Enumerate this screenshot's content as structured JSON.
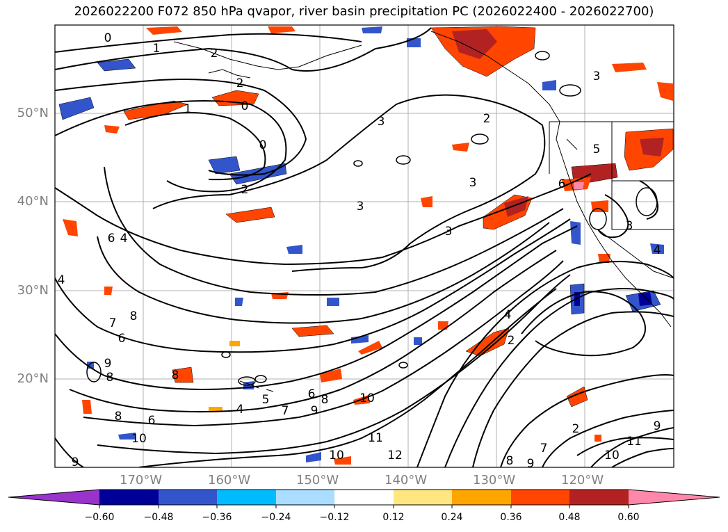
{
  "title": "2026022200 F072 850 hPa qvapor, river basin precipitation PC (2026022400 - 2026022700)",
  "lat_labels": [
    "50°N",
    "40°N",
    "30°N",
    "20°N"
  ],
  "lon_labels": [
    "170°W",
    "160°W",
    "150°W",
    "140°W",
    "130°W",
    "120°W"
  ],
  "contour_labels": [
    "0",
    "1",
    "2",
    "2",
    "0",
    "1",
    "0",
    "3",
    "2",
    "3",
    "3",
    "3",
    "2",
    "5",
    "6",
    "3",
    "4",
    "6",
    "4",
    "7",
    "8",
    "6",
    "9",
    "8",
    "8",
    "5",
    "4",
    "7",
    "6",
    "9",
    "8",
    "10",
    "11",
    "10",
    "12",
    "4",
    "2",
    "2",
    "7",
    "8",
    "9",
    "10",
    "11",
    "9",
    "9",
    "10",
    "6",
    "8",
    "3",
    "4"
  ],
  "colorbar": {
    "colors": [
      "#9933cc",
      "#000099",
      "#3355cc",
      "#00bbff",
      "#aaddff",
      "#ffffff",
      "#ffe680",
      "#ffa500",
      "#ff4500",
      "#b22222",
      "#ff88aa"
    ],
    "ticks": [
      "−0.60",
      "−0.48",
      "−0.36",
      "−0.24",
      "−0.12",
      "0.12",
      "0.24",
      "0.36",
      "0.48",
      "0.60"
    ]
  }
}
